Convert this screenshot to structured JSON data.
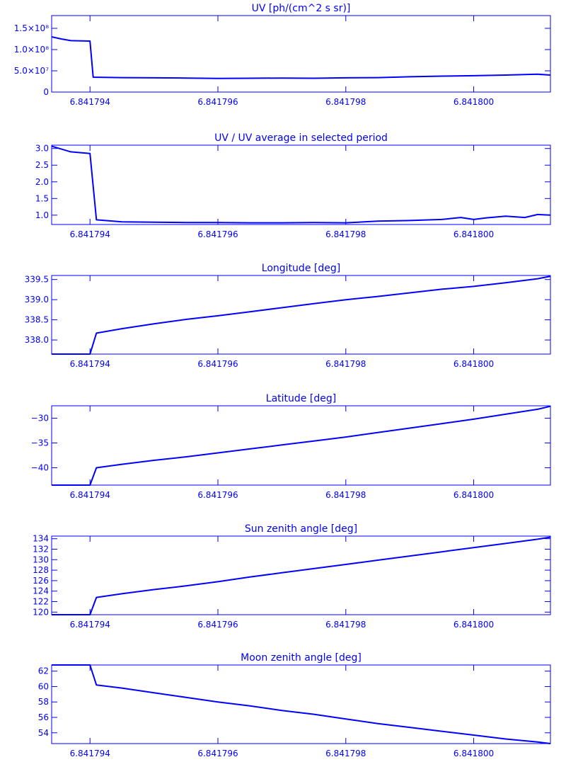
{
  "colors": {
    "line": "#0000ff",
    "axes": "#0000ff",
    "background": "#ffffff"
  },
  "chart_data": [
    {
      "type": "line",
      "title": "UV [ph/(cm^2 s sr)]",
      "xlabel": "",
      "ylabel": "",
      "xlim": [
        6.8417934,
        6.8418012
      ],
      "ylim": [
        0,
        180000000
      ],
      "xticks": [
        {
          "v": 6.841794,
          "label": "6.841794"
        },
        {
          "v": 6.841796,
          "label": "6.841796"
        },
        {
          "v": 6.841798,
          "label": "6.841798"
        },
        {
          "v": 6.8418,
          "label": "6.841800"
        }
      ],
      "yticks": [
        {
          "v": 0,
          "label": "0"
        },
        {
          "v": 50000000,
          "label": "5.0×10⁷"
        },
        {
          "v": 100000000,
          "label": "1.0×10⁸"
        },
        {
          "v": 150000000,
          "label": "1.5×10⁸"
        }
      ],
      "series": [
        {
          "x": [
            6.8417934,
            6.84179355,
            6.8417937,
            6.841794,
            6.84179405,
            6.8417945,
            6.841795,
            6.8417955,
            6.841796,
            6.8417965,
            6.841797,
            6.8417975,
            6.841798,
            6.8417985,
            6.841799,
            6.8417995,
            6.8418,
            6.8418005,
            6.841801,
            6.8418012
          ],
          "y": [
            130000000,
            125000000,
            121000000,
            120000000,
            35000000,
            34000000,
            33500000,
            33000000,
            32000000,
            32500000,
            33000000,
            32500000,
            33500000,
            34000000,
            36000000,
            37500000,
            38500000,
            40000000,
            42000000,
            40000000
          ]
        }
      ]
    },
    {
      "type": "line",
      "title": "UV / UV average in selected period",
      "xlabel": "",
      "ylabel": "",
      "xlim": [
        6.8417934,
        6.8418012
      ],
      "ylim": [
        0.72,
        3.1
      ],
      "xticks": [
        {
          "v": 6.841794,
          "label": "6.841794"
        },
        {
          "v": 6.841796,
          "label": "6.841796"
        },
        {
          "v": 6.841798,
          "label": "6.841798"
        },
        {
          "v": 6.8418,
          "label": "6.841800"
        }
      ],
      "yticks": [
        {
          "v": 1.0,
          "label": "1.0"
        },
        {
          "v": 1.5,
          "label": "1.5"
        },
        {
          "v": 2.0,
          "label": "2.0"
        },
        {
          "v": 2.5,
          "label": "2.5"
        },
        {
          "v": 3.0,
          "label": "3.0"
        }
      ],
      "series": [
        {
          "x": [
            6.8417934,
            6.8417937,
            6.841794,
            6.8417941,
            6.8417945,
            6.841795,
            6.8417955,
            6.841796,
            6.8417965,
            6.841797,
            6.8417975,
            6.841798,
            6.8417985,
            6.841799,
            6.8417995,
            6.8417998,
            6.8418,
            6.8418002,
            6.8418005,
            6.8418008,
            6.841801,
            6.8418012
          ],
          "y": [
            3.07,
            2.9,
            2.85,
            0.86,
            0.8,
            0.79,
            0.78,
            0.78,
            0.77,
            0.77,
            0.78,
            0.77,
            0.82,
            0.84,
            0.87,
            0.93,
            0.87,
            0.92,
            0.97,
            0.93,
            1.02,
            1.0
          ]
        }
      ]
    },
    {
      "type": "line",
      "title": "Longitude [deg]",
      "xlabel": "",
      "ylabel": "",
      "xlim": [
        6.8417934,
        6.8418012
      ],
      "ylim": [
        337.65,
        339.6
      ],
      "xticks": [
        {
          "v": 6.841794,
          "label": "6.841794"
        },
        {
          "v": 6.841796,
          "label": "6.841796"
        },
        {
          "v": 6.841798,
          "label": "6.841798"
        },
        {
          "v": 6.8418,
          "label": "6.841800"
        }
      ],
      "yticks": [
        {
          "v": 338.0,
          "label": "338.0"
        },
        {
          "v": 338.5,
          "label": "338.5"
        },
        {
          "v": 339.0,
          "label": "339.0"
        },
        {
          "v": 339.5,
          "label": "339.5"
        }
      ],
      "series": [
        {
          "x": [
            6.8417934,
            6.841794,
            6.8417941,
            6.8417945,
            6.841795,
            6.8417955,
            6.841796,
            6.8417965,
            6.841797,
            6.8417975,
            6.841798,
            6.8417985,
            6.841799,
            6.8417995,
            6.8418,
            6.8418005,
            6.841801,
            6.8418012
          ],
          "y": [
            337.65,
            337.65,
            338.17,
            338.28,
            338.4,
            338.51,
            338.6,
            338.7,
            338.8,
            338.9,
            339.0,
            339.08,
            339.17,
            339.26,
            339.33,
            339.42,
            339.52,
            339.58
          ]
        }
      ]
    },
    {
      "type": "line",
      "title": "Latitude [deg]",
      "xlabel": "",
      "ylabel": "",
      "xlim": [
        6.8417934,
        6.8418012
      ],
      "ylim": [
        -43.5,
        -27.5
      ],
      "xticks": [
        {
          "v": 6.841794,
          "label": "6.841794"
        },
        {
          "v": 6.841796,
          "label": "6.841796"
        },
        {
          "v": 6.841798,
          "label": "6.841798"
        },
        {
          "v": 6.8418,
          "label": "6.841800"
        }
      ],
      "yticks": [
        {
          "v": -40,
          "label": "−40"
        },
        {
          "v": -35,
          "label": "−35"
        },
        {
          "v": -30,
          "label": "−30"
        }
      ],
      "series": [
        {
          "x": [
            6.8417934,
            6.841794,
            6.8417941,
            6.8417945,
            6.841795,
            6.8417955,
            6.841796,
            6.8417965,
            6.841797,
            6.8417975,
            6.841798,
            6.8417985,
            6.841799,
            6.8417995,
            6.8418,
            6.8418005,
            6.841801,
            6.8418012
          ],
          "y": [
            -43.5,
            -43.5,
            -40.0,
            -39.3,
            -38.5,
            -37.8,
            -37.0,
            -36.2,
            -35.4,
            -34.6,
            -33.8,
            -32.9,
            -32.0,
            -31.1,
            -30.2,
            -29.2,
            -28.2,
            -27.6
          ]
        }
      ]
    },
    {
      "type": "line",
      "title": "Sun zenith angle [deg]",
      "xlabel": "",
      "ylabel": "",
      "xlim": [
        6.8417934,
        6.8418012
      ],
      "ylim": [
        119.5,
        134.5
      ],
      "xticks": [
        {
          "v": 6.841794,
          "label": "6.841794"
        },
        {
          "v": 6.841796,
          "label": "6.841796"
        },
        {
          "v": 6.841798,
          "label": "6.841798"
        },
        {
          "v": 6.8418,
          "label": "6.841800"
        }
      ],
      "yticks": [
        {
          "v": 120,
          "label": "120"
        },
        {
          "v": 122,
          "label": "122"
        },
        {
          "v": 124,
          "label": "124"
        },
        {
          "v": 126,
          "label": "126"
        },
        {
          "v": 128,
          "label": "128"
        },
        {
          "v": 130,
          "label": "130"
        },
        {
          "v": 132,
          "label": "132"
        },
        {
          "v": 134,
          "label": "134"
        }
      ],
      "series": [
        {
          "x": [
            6.8417934,
            6.841794,
            6.8417941,
            6.8417945,
            6.841795,
            6.8417955,
            6.841796,
            6.8417965,
            6.841797,
            6.8417975,
            6.841798,
            6.8417985,
            6.841799,
            6.8417995,
            6.8418,
            6.8418005,
            6.841801,
            6.8418012
          ],
          "y": [
            119.5,
            119.5,
            122.8,
            123.5,
            124.3,
            125.0,
            125.8,
            126.7,
            127.5,
            128.3,
            129.1,
            129.9,
            130.7,
            131.5,
            132.3,
            133.1,
            133.9,
            134.3
          ]
        }
      ]
    },
    {
      "type": "line",
      "title": "Moon zenith angle [deg]",
      "xlabel": "",
      "ylabel": "",
      "xlim": [
        6.8417934,
        6.8418012
      ],
      "ylim": [
        52.6,
        62.8
      ],
      "xticks": [
        {
          "v": 6.841794,
          "label": "6.841794"
        },
        {
          "v": 6.841796,
          "label": "6.841796"
        },
        {
          "v": 6.841798,
          "label": "6.841798"
        },
        {
          "v": 6.8418,
          "label": "6.841800"
        }
      ],
      "yticks": [
        {
          "v": 54,
          "label": "54"
        },
        {
          "v": 56,
          "label": "56"
        },
        {
          "v": 58,
          "label": "58"
        },
        {
          "v": 60,
          "label": "60"
        },
        {
          "v": 62,
          "label": "62"
        }
      ],
      "series": [
        {
          "x": [
            6.8417934,
            6.841794,
            6.8417941,
            6.8417945,
            6.841795,
            6.8417955,
            6.841796,
            6.8417965,
            6.841797,
            6.8417975,
            6.841798,
            6.8417985,
            6.841799,
            6.8417995,
            6.8418,
            6.8418005,
            6.841801,
            6.8418012
          ],
          "y": [
            62.8,
            62.8,
            60.2,
            59.8,
            59.2,
            58.6,
            58.0,
            57.5,
            56.9,
            56.4,
            55.8,
            55.2,
            54.7,
            54.2,
            53.7,
            53.2,
            52.8,
            52.6
          ]
        }
      ]
    }
  ]
}
